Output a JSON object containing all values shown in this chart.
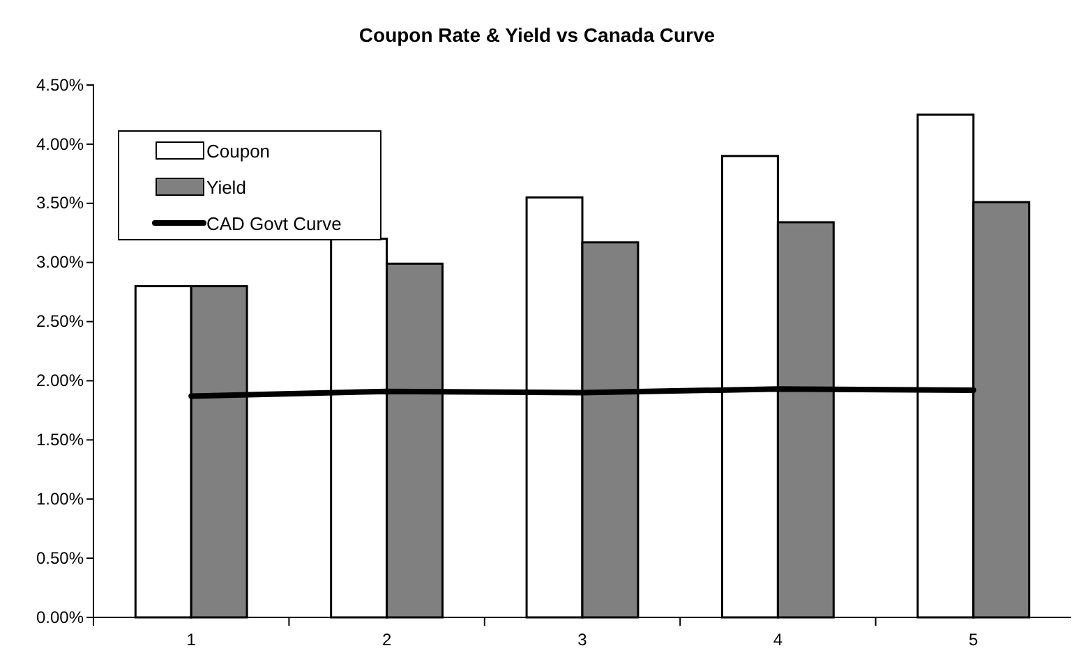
{
  "chart_data": {
    "type": "bar",
    "title": "Coupon Rate & Yield vs Canada Curve",
    "categories": [
      "1",
      "2",
      "3",
      "4",
      "5"
    ],
    "series": [
      {
        "name": "Coupon",
        "color": "#ffffff",
        "values": [
          2.8,
          3.2,
          3.55,
          3.9,
          4.25
        ]
      },
      {
        "name": "Yield",
        "color": "#808080",
        "values": [
          2.8,
          2.99,
          3.17,
          3.34,
          3.51
        ]
      },
      {
        "name": "CAD Govt Curve",
        "type": "line",
        "color": "#000000",
        "values": [
          1.87,
          1.91,
          1.9,
          1.93,
          1.92
        ]
      }
    ],
    "ylim": [
      0,
      4.5
    ],
    "yticks": [
      {
        "value": 0,
        "label": "0.00%"
      },
      {
        "value": 0.5,
        "label": "0.50%"
      },
      {
        "value": 1,
        "label": "1.00%"
      },
      {
        "value": 1.5,
        "label": "1.50%"
      },
      {
        "value": 2,
        "label": "2.00%"
      },
      {
        "value": 2.5,
        "label": "2.50%"
      },
      {
        "value": 3,
        "label": "3.00%"
      },
      {
        "value": 3.5,
        "label": "3.50%"
      },
      {
        "value": 4,
        "label": "4.00%"
      },
      {
        "value": 4.5,
        "label": "4.50%"
      }
    ],
    "grid": false,
    "legend": "top left"
  }
}
